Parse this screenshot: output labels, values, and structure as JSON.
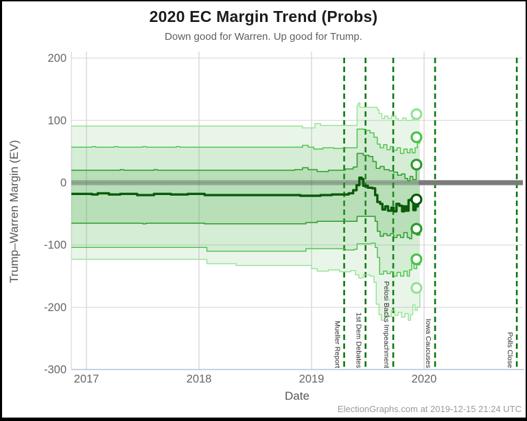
{
  "chart_data": {
    "type": "line",
    "title": "2020 EC Margin Trend (Probs)",
    "subtitle": "Down good for Warren. Up good for Trump.",
    "xlabel": "Date",
    "ylabel": "Trump–Warren Margin (EV)",
    "footer": "ElectionGraphs.com at 2019-12-15 21:24 UTC",
    "xlim": [
      2016.866,
      2020.878
    ],
    "ylim": [
      -300,
      210
    ],
    "grid": true,
    "x_ticks": [
      {
        "value": 2017,
        "label": "2017"
      },
      {
        "value": 2018,
        "label": "2018"
      },
      {
        "value": 2019,
        "label": "2019"
      },
      {
        "value": 2020,
        "label": "2020"
      }
    ],
    "y_ticks": [
      {
        "value": 200,
        "label": "200"
      },
      {
        "value": 100,
        "label": "100"
      },
      {
        "value": 0,
        "label": "0"
      },
      {
        "value": -100,
        "label": "-100"
      },
      {
        "value": -200,
        "label": "-200"
      },
      {
        "value": -300,
        "label": "-300"
      }
    ],
    "colors": {
      "grid_h": "#d6d6d6",
      "grid_v": "#c9c9c9",
      "axis_bottom": "#b9c8d9",
      "axis_left": "#cfcfcf",
      "tick_label": "#666666",
      "event_line": "#0a780a",
      "event_label": "#2b2b2b",
      "zero_band_solid": "#7b7b7b",
      "zero_band_overlay": "rgba(80,80,80,0.38)",
      "band_fill_rgb": "70,175,70",
      "outer_line": "#93e493",
      "mid_line": "#47c347",
      "inner_line": "#2b9c2b",
      "median_line": "#0a5a0a"
    },
    "zero_band": {
      "value": 0,
      "half_width_ev": 4
    },
    "data_end_year": 2019.963,
    "events": [
      {
        "label": "Mueller Report",
        "year": 2019.29
      },
      {
        "label": "1st Dem Debates",
        "year": 2019.48
      },
      {
        "label": "Pelosi Backs Impeachment",
        "year": 2019.726
      },
      {
        "label": "Iowa Caucuses",
        "year": 2020.098
      },
      {
        "label": "Polls Close",
        "year": 2020.824
      }
    ],
    "bands": [
      {
        "top": "outer_top",
        "bottom": "outer_bottom",
        "alpha": 0.12
      },
      {
        "top": "mid_top",
        "bottom": "mid_bottom",
        "alpha": 0.12
      },
      {
        "top": "inner_top",
        "bottom": "inner_bottom",
        "alpha": 0.2
      }
    ],
    "series": [
      {
        "name": "outer_top",
        "color_key": "outer_line",
        "width": 1.4,
        "points": [
          [
            2016.866,
            91
          ],
          [
            2018.88,
            91
          ],
          [
            2018.92,
            88
          ],
          [
            2019.0,
            88
          ],
          [
            2019.03,
            95
          ],
          [
            2019.08,
            92
          ],
          [
            2019.38,
            92
          ],
          [
            2019.405,
            124
          ],
          [
            2019.415,
            128
          ],
          [
            2019.43,
            121
          ],
          [
            2019.56,
            121
          ],
          [
            2019.585,
            117
          ],
          [
            2019.6,
            111
          ],
          [
            2019.625,
            103
          ],
          [
            2019.65,
            107
          ],
          [
            2019.68,
            103
          ],
          [
            2019.71,
            107
          ],
          [
            2019.75,
            103
          ],
          [
            2019.77,
            100
          ],
          [
            2019.81,
            104
          ],
          [
            2019.84,
            100
          ],
          [
            2019.89,
            101
          ],
          [
            2019.905,
            104
          ],
          [
            2019.93,
            107
          ],
          [
            2019.963,
            110
          ]
        ]
      },
      {
        "name": "mid_top",
        "color_key": "mid_line",
        "width": 1.4,
        "points": [
          [
            2016.866,
            57
          ],
          [
            2017.05,
            58
          ],
          [
            2017.08,
            57
          ],
          [
            2017.25,
            58
          ],
          [
            2017.28,
            57
          ],
          [
            2017.5,
            58
          ],
          [
            2017.53,
            57
          ],
          [
            2017.8,
            58
          ],
          [
            2017.83,
            57
          ],
          [
            2018.85,
            57
          ],
          [
            2018.92,
            60
          ],
          [
            2018.97,
            57
          ],
          [
            2019.02,
            54
          ],
          [
            2019.1,
            56
          ],
          [
            2019.2,
            55
          ],
          [
            2019.3,
            56
          ],
          [
            2019.405,
            86
          ],
          [
            2019.47,
            84
          ],
          [
            2019.52,
            80
          ],
          [
            2019.555,
            73
          ],
          [
            2019.585,
            62
          ],
          [
            2019.61,
            56
          ],
          [
            2019.64,
            61
          ],
          [
            2019.67,
            53
          ],
          [
            2019.7,
            58
          ],
          [
            2019.73,
            52
          ],
          [
            2019.76,
            56
          ],
          [
            2019.79,
            47
          ],
          [
            2019.82,
            54
          ],
          [
            2019.85,
            48
          ],
          [
            2019.875,
            54
          ],
          [
            2019.895,
            48
          ],
          [
            2019.92,
            56
          ],
          [
            2019.94,
            64
          ],
          [
            2019.963,
            73
          ]
        ]
      },
      {
        "name": "inner_top",
        "color_key": "inner_line",
        "width": 1.5,
        "points": [
          [
            2016.866,
            20
          ],
          [
            2017.3,
            21
          ],
          [
            2017.33,
            20
          ],
          [
            2017.6,
            21
          ],
          [
            2017.63,
            20
          ],
          [
            2018.1,
            20
          ],
          [
            2018.85,
            21
          ],
          [
            2018.92,
            24
          ],
          [
            2018.97,
            21
          ],
          [
            2019.05,
            18
          ],
          [
            2019.15,
            20
          ],
          [
            2019.3,
            22
          ],
          [
            2019.37,
            25
          ],
          [
            2019.405,
            47
          ],
          [
            2019.46,
            44
          ],
          [
            2019.51,
            42
          ],
          [
            2019.545,
            34
          ],
          [
            2019.575,
            23
          ],
          [
            2019.61,
            26
          ],
          [
            2019.645,
            21
          ],
          [
            2019.69,
            19
          ],
          [
            2019.73,
            17
          ],
          [
            2019.765,
            12
          ],
          [
            2019.8,
            14
          ],
          [
            2019.83,
            7
          ],
          [
            2019.855,
            3
          ],
          [
            2019.875,
            10
          ],
          [
            2019.9,
            5
          ],
          [
            2019.93,
            24
          ],
          [
            2019.963,
            29
          ]
        ]
      },
      {
        "name": "median",
        "color_key": "median_line",
        "width": 3.4,
        "points": [
          [
            2016.866,
            -18
          ],
          [
            2017.05,
            -19
          ],
          [
            2017.1,
            -17
          ],
          [
            2017.2,
            -19
          ],
          [
            2017.3,
            -18
          ],
          [
            2017.45,
            -20
          ],
          [
            2017.6,
            -18
          ],
          [
            2017.75,
            -19
          ],
          [
            2017.9,
            -18
          ],
          [
            2018.05,
            -20
          ],
          [
            2018.5,
            -20
          ],
          [
            2018.9,
            -21
          ],
          [
            2019.0,
            -21
          ],
          [
            2019.08,
            -20
          ],
          [
            2019.18,
            -19
          ],
          [
            2019.28,
            -19
          ],
          [
            2019.33,
            -17
          ],
          [
            2019.37,
            -12
          ],
          [
            2019.4,
            -4
          ],
          [
            2019.425,
            8
          ],
          [
            2019.445,
            6
          ],
          [
            2019.46,
            -5
          ],
          [
            2019.5,
            -8
          ],
          [
            2019.54,
            -9
          ],
          [
            2019.565,
            -20
          ],
          [
            2019.585,
            -31
          ],
          [
            2019.61,
            -34
          ],
          [
            2019.63,
            -43
          ],
          [
            2019.655,
            -38
          ],
          [
            2019.68,
            -45
          ],
          [
            2019.71,
            -40
          ],
          [
            2019.73,
            -46
          ],
          [
            2019.755,
            -34
          ],
          [
            2019.78,
            -37
          ],
          [
            2019.805,
            -46
          ],
          [
            2019.825,
            -38
          ],
          [
            2019.845,
            -45
          ],
          [
            2019.862,
            -28
          ],
          [
            2019.885,
            -26
          ],
          [
            2019.905,
            -44
          ],
          [
            2019.925,
            -38
          ],
          [
            2019.945,
            -30
          ],
          [
            2019.963,
            -27
          ]
        ]
      },
      {
        "name": "inner_bottom",
        "color_key": "inner_line",
        "width": 1.5,
        "points": [
          [
            2016.866,
            -65
          ],
          [
            2017.5,
            -66
          ],
          [
            2017.53,
            -65
          ],
          [
            2018.05,
            -66
          ],
          [
            2018.88,
            -66
          ],
          [
            2018.95,
            -64
          ],
          [
            2019.05,
            -62
          ],
          [
            2019.38,
            -62
          ],
          [
            2019.405,
            -54
          ],
          [
            2019.53,
            -54
          ],
          [
            2019.565,
            -62
          ],
          [
            2019.585,
            -78
          ],
          [
            2019.61,
            -86
          ],
          [
            2019.64,
            -82
          ],
          [
            2019.67,
            -85
          ],
          [
            2019.7,
            -82
          ],
          [
            2019.73,
            -88
          ],
          [
            2019.76,
            -84
          ],
          [
            2019.79,
            -88
          ],
          [
            2019.82,
            -80
          ],
          [
            2019.85,
            -88
          ],
          [
            2019.87,
            -90
          ],
          [
            2019.89,
            -72
          ],
          [
            2019.91,
            -80
          ],
          [
            2019.935,
            -84
          ],
          [
            2019.963,
            -74
          ]
        ]
      },
      {
        "name": "mid_bottom",
        "color_key": "mid_line",
        "width": 1.4,
        "points": [
          [
            2016.866,
            -104
          ],
          [
            2018.05,
            -104
          ],
          [
            2018.07,
            -110
          ],
          [
            2018.9,
            -110
          ],
          [
            2018.95,
            -106
          ],
          [
            2019.2,
            -106
          ],
          [
            2019.3,
            -108
          ],
          [
            2019.38,
            -107
          ],
          [
            2019.405,
            -98
          ],
          [
            2019.53,
            -97
          ],
          [
            2019.565,
            -104
          ],
          [
            2019.585,
            -120
          ],
          [
            2019.605,
            -147
          ],
          [
            2019.64,
            -142
          ],
          [
            2019.67,
            -146
          ],
          [
            2019.7,
            -143
          ],
          [
            2019.73,
            -150
          ],
          [
            2019.76,
            -144
          ],
          [
            2019.79,
            -150
          ],
          [
            2019.82,
            -142
          ],
          [
            2019.85,
            -150
          ],
          [
            2019.87,
            -140
          ],
          [
            2019.89,
            -126
          ],
          [
            2019.91,
            -138
          ],
          [
            2019.935,
            -132
          ],
          [
            2019.963,
            -123
          ]
        ]
      },
      {
        "name": "outer_bottom",
        "color_key": "outer_line",
        "width": 1.4,
        "points": [
          [
            2016.866,
            -123
          ],
          [
            2018.05,
            -123
          ],
          [
            2018.07,
            -130
          ],
          [
            2018.3,
            -130
          ],
          [
            2018.33,
            -133
          ],
          [
            2018.9,
            -133
          ],
          [
            2019.0,
            -138
          ],
          [
            2019.05,
            -142
          ],
          [
            2019.15,
            -140
          ],
          [
            2019.25,
            -143
          ],
          [
            2019.35,
            -141
          ],
          [
            2019.39,
            -148
          ],
          [
            2019.42,
            -153
          ],
          [
            2019.46,
            -148
          ],
          [
            2019.52,
            -150
          ],
          [
            2019.555,
            -160
          ],
          [
            2019.575,
            -195
          ],
          [
            2019.6,
            -212
          ],
          [
            2019.62,
            -221
          ],
          [
            2019.65,
            -210
          ],
          [
            2019.68,
            -215
          ],
          [
            2019.71,
            -205
          ],
          [
            2019.74,
            -213
          ],
          [
            2019.77,
            -208
          ],
          [
            2019.8,
            -216
          ],
          [
            2019.83,
            -210
          ],
          [
            2019.86,
            -221
          ],
          [
            2019.88,
            -212
          ],
          [
            2019.9,
            -196
          ],
          [
            2019.92,
            -205
          ],
          [
            2019.94,
            -200
          ],
          [
            2019.963,
            -169
          ]
        ]
      }
    ],
    "endpoints": [
      {
        "series": "outer_top",
        "value": 110
      },
      {
        "series": "mid_top",
        "value": 73
      },
      {
        "series": "inner_top",
        "value": 29
      },
      {
        "series": "median",
        "value": -27
      },
      {
        "series": "inner_bottom",
        "value": -74
      },
      {
        "series": "mid_bottom",
        "value": -123
      },
      {
        "series": "outer_bottom",
        "value": -169
      }
    ]
  }
}
